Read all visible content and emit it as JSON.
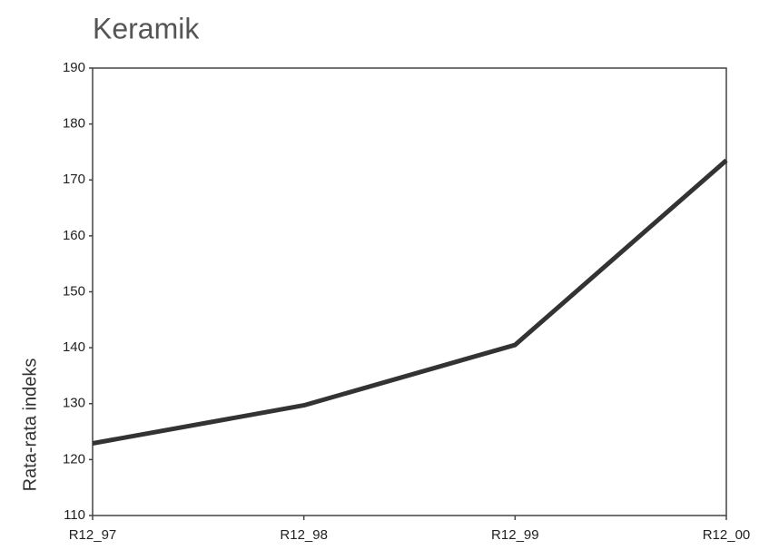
{
  "chart_data": {
    "type": "line",
    "title": "Keramik",
    "y_label": "Rata-rata indeks",
    "categories": [
      "R12_97",
      "R12_98",
      "R12_99",
      "R12_00"
    ],
    "values": [
      122.9,
      129.7,
      140.5,
      173.5
    ],
    "color": "#333333",
    "ylim": [
      110,
      190
    ],
    "yticks": [
      110,
      120,
      130,
      140,
      150,
      160,
      170,
      180,
      190
    ]
  }
}
